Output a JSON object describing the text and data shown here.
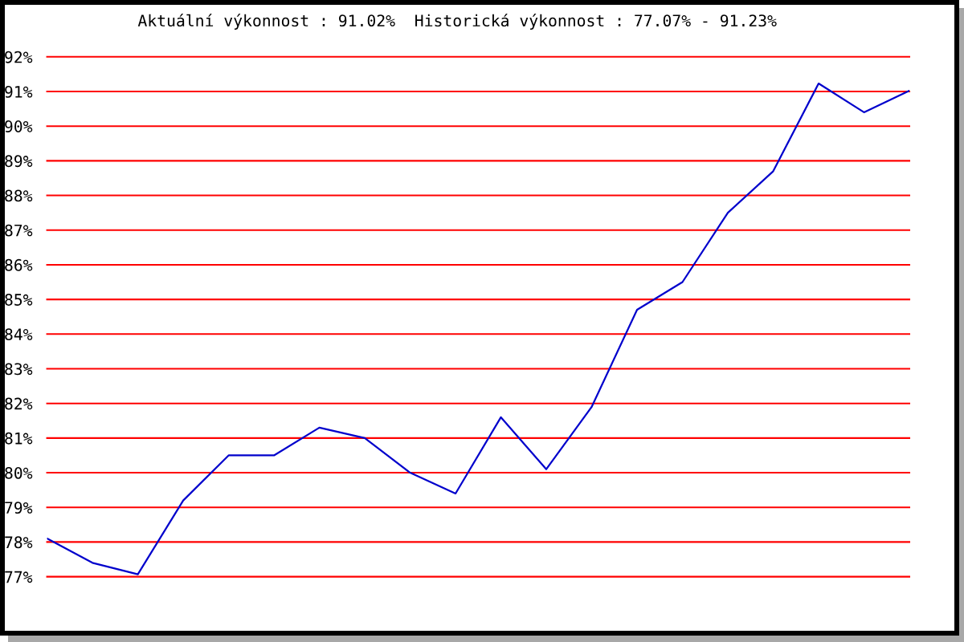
{
  "chart_data": {
    "type": "line",
    "title": "Aktuální výkonnost : 91.02%  Historická výkonnost : 77.07% - 91.23%",
    "categories": [
      null,
      null,
      null,
      null,
      null,
      null,
      null,
      null,
      null,
      null,
      null,
      null,
      null,
      null,
      null,
      null,
      null,
      null,
      null,
      null
    ],
    "series": [
      {
        "color": "#0000cc",
        "values": [
          78.1,
          77.4,
          77.07,
          79.2,
          80.5,
          80.5,
          81.3,
          81.0,
          80.0,
          79.4,
          81.6,
          80.1,
          81.9,
          84.7,
          85.5,
          87.5,
          88.7,
          91.23,
          90.4,
          91.02
        ]
      }
    ],
    "ylim": [
      77,
      92
    ],
    "yticks": [
      {
        "value": 77,
        "label": "77%"
      },
      {
        "value": 78,
        "label": "78%"
      },
      {
        "value": 79,
        "label": "79%"
      },
      {
        "value": 80,
        "label": "80%"
      },
      {
        "value": 81,
        "label": "81%"
      },
      {
        "value": 82,
        "label": "82%"
      },
      {
        "value": 83,
        "label": "83%"
      },
      {
        "value": 84,
        "label": "84%"
      },
      {
        "value": 85,
        "label": "85%"
      },
      {
        "value": 86,
        "label": "86%"
      },
      {
        "value": 87,
        "label": "87%"
      },
      {
        "value": 88,
        "label": "88%"
      },
      {
        "value": 89,
        "label": "89%"
      },
      {
        "value": 90,
        "label": "90%"
      },
      {
        "value": 91,
        "label": "91%"
      },
      {
        "value": 92,
        "label": "92%"
      }
    ],
    "grid": "y",
    "tick_labels": "y"
  }
}
